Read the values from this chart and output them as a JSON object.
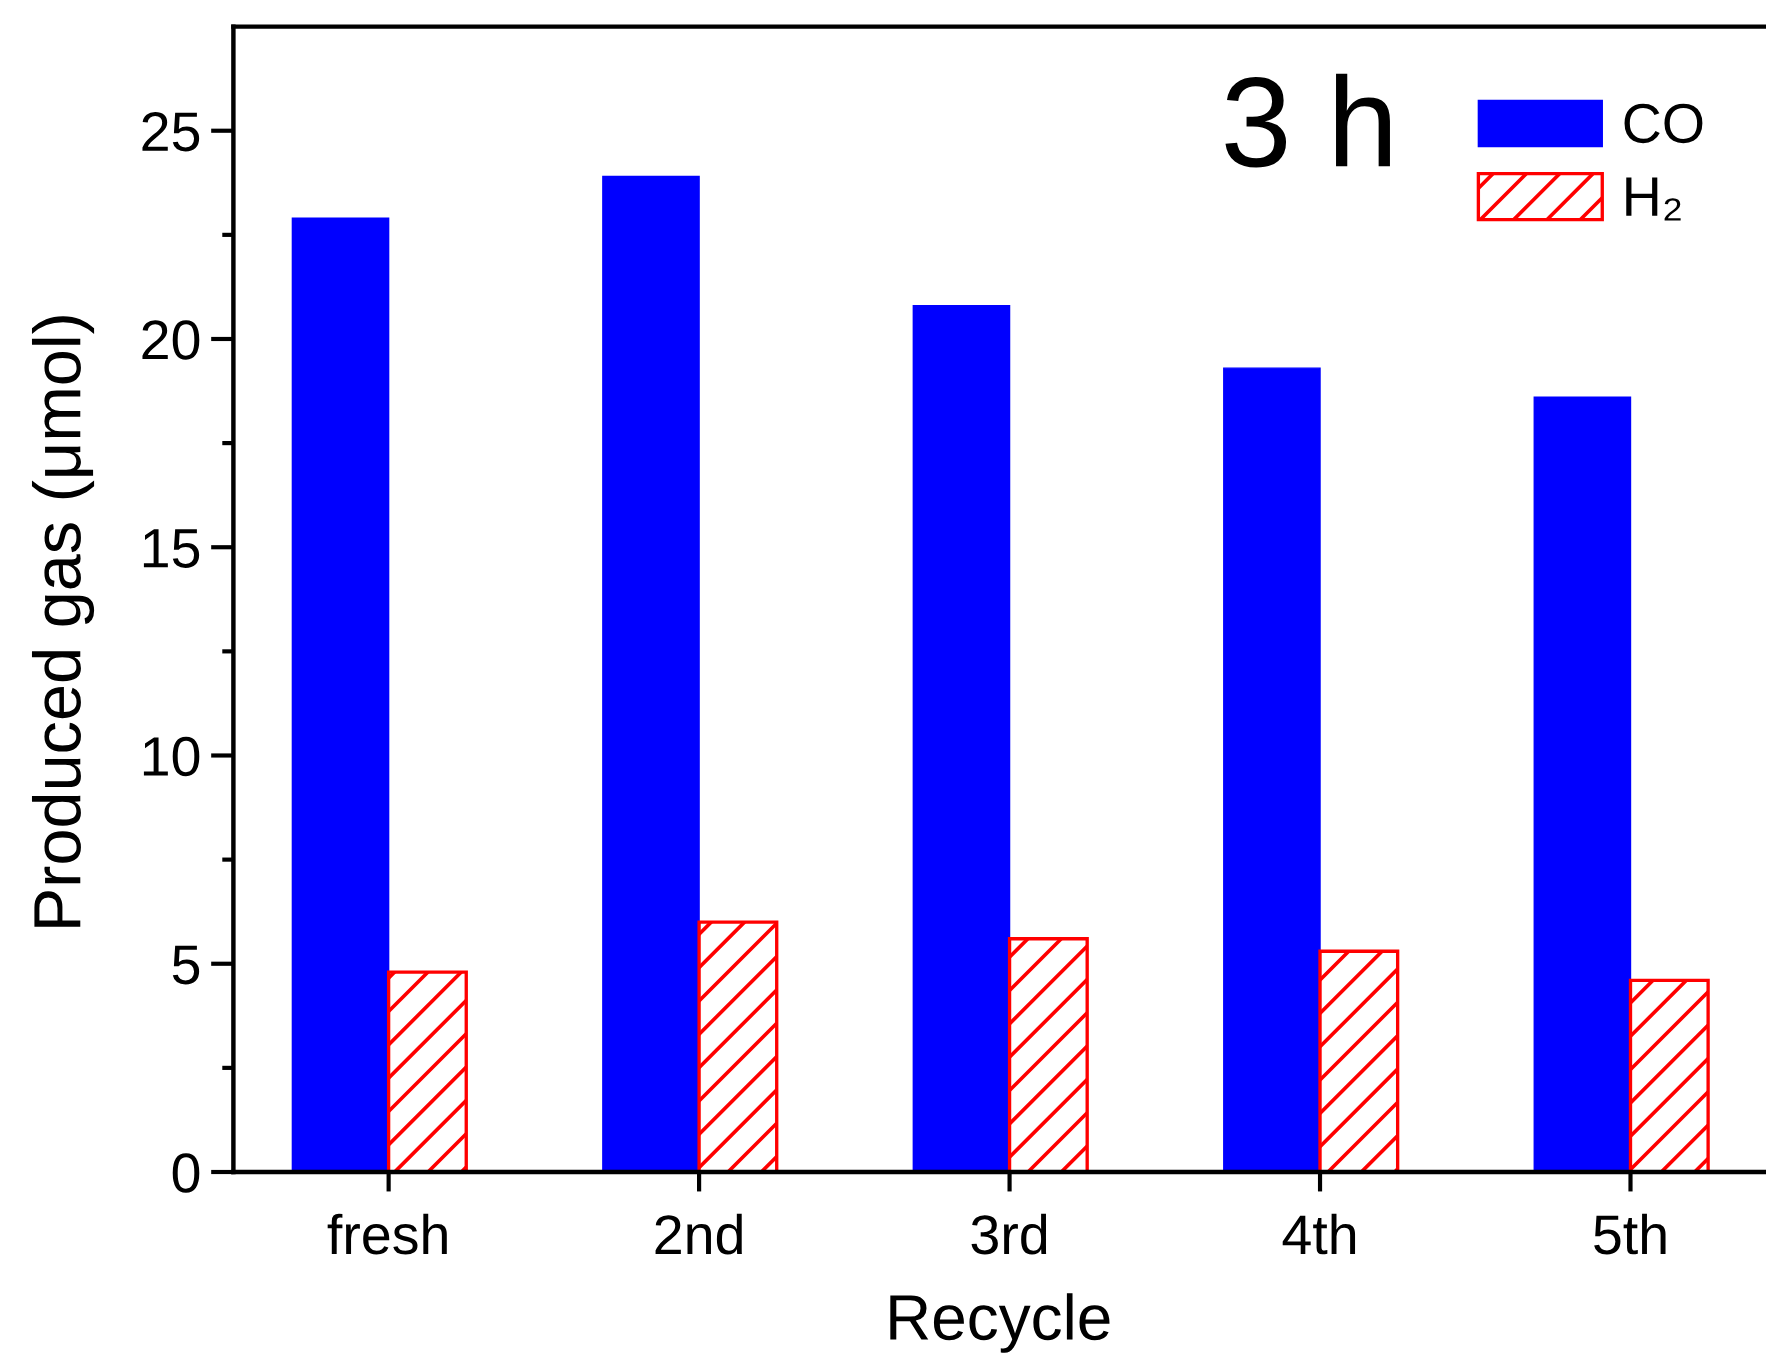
{
  "chart_data": {
    "type": "bar",
    "annotations": [
      "3 h"
    ],
    "xlabel": "Recycle",
    "ylabel": "Produced gas (μmol)",
    "categories": [
      "fresh",
      "2nd",
      "3rd",
      "4th",
      "5th"
    ],
    "series": [
      {
        "name": "CO",
        "color": "#0000ff",
        "values": [
          22.9,
          23.9,
          20.8,
          19.3,
          18.6
        ]
      },
      {
        "name": "H₂",
        "color": "#ff0000",
        "values": [
          4.8,
          6.0,
          5.6,
          5.3,
          4.6
        ]
      }
    ],
    "ylim": [
      0,
      27.5
    ],
    "yticks": [
      0,
      5,
      10,
      15,
      20,
      25
    ],
    "legend": "top right"
  }
}
